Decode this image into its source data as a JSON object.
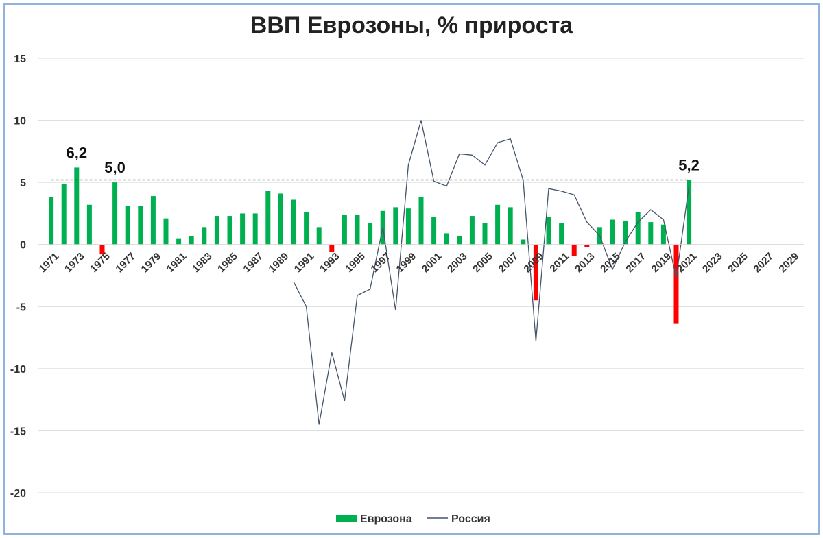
{
  "chart_data": {
    "type": "bar",
    "title": "ВВП Еврозоны, % прироста",
    "xlabel": "",
    "ylabel": "",
    "ylim": [
      -20,
      15
    ],
    "yticks": [
      15,
      10,
      5,
      0,
      -5,
      -10,
      -15,
      -20
    ],
    "grid": "horizontal",
    "legend_position": "bottom",
    "x_tick_labels": [
      "1971",
      "1973",
      "1975",
      "1977",
      "1979",
      "1981",
      "1983",
      "1985",
      "1987",
      "1989",
      "1991",
      "1993",
      "1995",
      "1997",
      "1999",
      "2001",
      "2003",
      "2005",
      "2007",
      "2009",
      "2011",
      "2013",
      "2015",
      "2017",
      "2019",
      "2021",
      "2023",
      "2025",
      "2027",
      "2029"
    ],
    "reference_line": 5.2,
    "series": [
      {
        "name": "Еврозона",
        "type": "bar",
        "color": "#00b050",
        "negative_color": "#ff0000",
        "x": [
          1971,
          1972,
          1973,
          1974,
          1975,
          1976,
          1977,
          1978,
          1979,
          1980,
          1981,
          1982,
          1983,
          1984,
          1985,
          1986,
          1987,
          1988,
          1989,
          1990,
          1991,
          1992,
          1993,
          1994,
          1995,
          1996,
          1997,
          1998,
          1999,
          2000,
          2001,
          2002,
          2003,
          2004,
          2005,
          2006,
          2007,
          2008,
          2009,
          2010,
          2011,
          2012,
          2013,
          2014,
          2015,
          2016,
          2017,
          2018,
          2019,
          2020,
          2021
        ],
        "values": [
          3.8,
          4.9,
          6.2,
          3.2,
          -0.8,
          5.0,
          3.1,
          3.1,
          3.9,
          2.1,
          0.5,
          0.7,
          1.4,
          2.3,
          2.3,
          2.5,
          2.5,
          4.3,
          4.1,
          3.6,
          2.6,
          1.4,
          -0.6,
          2.4,
          2.4,
          1.7,
          2.7,
          3.0,
          2.9,
          3.8,
          2.2,
          0.9,
          0.7,
          2.3,
          1.7,
          3.2,
          3.0,
          0.4,
          -4.5,
          2.2,
          1.7,
          -0.9,
          -0.2,
          1.4,
          2.0,
          1.9,
          2.6,
          1.8,
          1.6,
          -6.4,
          5.2
        ]
      },
      {
        "name": "Россия",
        "type": "line",
        "color": "#44546a",
        "x": [
          1990,
          1991,
          1992,
          1993,
          1994,
          1995,
          1996,
          1997,
          1998,
          1999,
          2000,
          2001,
          2002,
          2003,
          2004,
          2005,
          2006,
          2007,
          2008,
          2009,
          2010,
          2011,
          2012,
          2013,
          2014,
          2015,
          2016,
          2017,
          2018,
          2019,
          2020,
          2021
        ],
        "values": [
          -3.0,
          -5.0,
          -14.5,
          -8.7,
          -12.6,
          -4.1,
          -3.6,
          1.4,
          -5.3,
          6.4,
          10.0,
          5.1,
          4.7,
          7.3,
          7.2,
          6.4,
          8.2,
          8.5,
          5.2,
          -7.8,
          4.5,
          4.3,
          4.0,
          1.8,
          0.7,
          -2.0,
          0.2,
          1.8,
          2.8,
          2.0,
          -2.7,
          4.7
        ]
      }
    ],
    "annotations": [
      {
        "x": 1973,
        "text": "6,2"
      },
      {
        "x": 1976,
        "text": "5,0"
      },
      {
        "x": 2021,
        "text": "5,2"
      }
    ]
  }
}
